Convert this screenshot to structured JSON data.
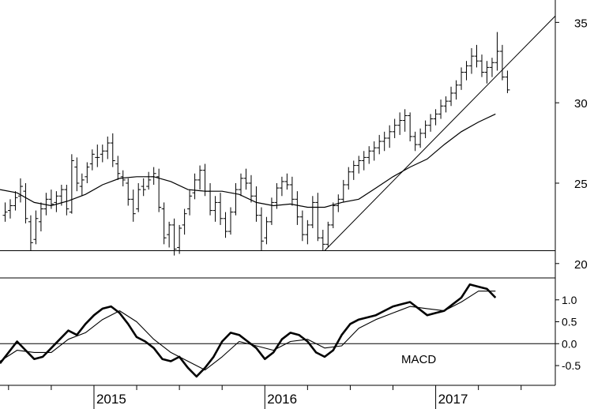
{
  "chart_data": [
    {
      "type": "ohlc",
      "y_ticks": [
        20,
        25,
        30,
        35
      ],
      "y_tick_labels": [
        "20",
        "25",
        "30",
        "35"
      ],
      "ylim": [
        19.4,
        36.0
      ],
      "xlim": [
        2014.45,
        2017.7
      ],
      "support_line": {
        "y": 20.8,
        "x": [
          2014.45,
          2017.7
        ]
      },
      "trend_line": {
        "points": [
          [
            2016.35,
            20.8
          ],
          [
            2017.7,
            35.4
          ]
        ]
      },
      "bars": [
        [
          2014.48,
          23.0,
          23.8,
          22.6,
          23.2
        ],
        [
          2014.51,
          23.3,
          24.0,
          22.8,
          23.6
        ],
        [
          2014.54,
          23.6,
          24.5,
          23.3,
          24.1
        ],
        [
          2014.57,
          24.2,
          25.3,
          23.8,
          24.8
        ],
        [
          2014.6,
          24.5,
          25.0,
          22.5,
          22.8
        ],
        [
          2014.63,
          22.6,
          23.0,
          20.8,
          21.3
        ],
        [
          2014.66,
          21.5,
          23.3,
          21.2,
          22.8
        ],
        [
          2014.69,
          22.6,
          23.8,
          22.0,
          23.4
        ],
        [
          2014.72,
          23.4,
          24.4,
          23.0,
          24.0
        ],
        [
          2014.75,
          24.0,
          24.6,
          23.4,
          23.7
        ],
        [
          2014.78,
          23.8,
          24.5,
          23.2,
          24.2
        ],
        [
          2014.81,
          24.2,
          24.9,
          23.6,
          24.6
        ],
        [
          2014.84,
          24.6,
          24.9,
          23.0,
          23.4
        ],
        [
          2014.87,
          23.2,
          26.8,
          23.1,
          26.4
        ],
        [
          2014.9,
          26.0,
          26.6,
          24.5,
          25.0
        ],
        [
          2014.93,
          24.8,
          25.6,
          24.2,
          25.2
        ],
        [
          2014.96,
          25.4,
          26.3,
          25.0,
          26.0
        ],
        [
          2014.99,
          26.2,
          27.1,
          25.8,
          26.8
        ],
        [
          2015.02,
          26.6,
          27.4,
          26.0,
          26.6
        ],
        [
          2015.05,
          26.8,
          27.4,
          26.3,
          27.0
        ],
        [
          2015.08,
          27.0,
          27.9,
          26.5,
          27.5
        ],
        [
          2015.11,
          27.5,
          28.1,
          26.0,
          26.4
        ],
        [
          2015.14,
          26.2,
          26.7,
          25.2,
          25.6
        ],
        [
          2015.17,
          25.4,
          25.8,
          24.8,
          25.2
        ],
        [
          2015.2,
          25.0,
          25.3,
          23.6,
          24.0
        ],
        [
          2015.23,
          24.0,
          24.6,
          22.6,
          23.1
        ],
        [
          2015.26,
          23.4,
          25.0,
          23.2,
          24.6
        ],
        [
          2015.29,
          24.8,
          25.3,
          24.2,
          24.6
        ],
        [
          2015.32,
          24.8,
          25.7,
          24.6,
          25.2
        ],
        [
          2015.35,
          25.4,
          26.0,
          24.9,
          25.6
        ],
        [
          2015.38,
          25.4,
          25.9,
          23.2,
          23.5
        ],
        [
          2015.41,
          23.4,
          23.8,
          21.2,
          21.6
        ],
        [
          2015.44,
          21.8,
          22.6,
          21.0,
          22.4
        ],
        [
          2015.47,
          22.4,
          22.8,
          20.5,
          20.9
        ],
        [
          2015.5,
          21.0,
          22.4,
          20.6,
          22.2
        ],
        [
          2015.53,
          22.4,
          23.4,
          21.8,
          23.1
        ],
        [
          2015.56,
          23.4,
          24.6,
          23.0,
          24.2
        ],
        [
          2015.59,
          24.4,
          25.6,
          24.0,
          25.2
        ],
        [
          2015.62,
          25.2,
          26.1,
          24.6,
          25.8
        ],
        [
          2015.65,
          25.8,
          26.2,
          24.2,
          24.5
        ],
        [
          2015.68,
          24.5,
          25.0,
          23.0,
          23.3
        ],
        [
          2015.71,
          23.3,
          24.2,
          22.6,
          23.8
        ],
        [
          2015.74,
          23.8,
          24.4,
          22.4,
          22.8
        ],
        [
          2015.77,
          22.8,
          23.2,
          21.6,
          22.0
        ],
        [
          2015.8,
          22.0,
          23.5,
          21.8,
          23.2
        ],
        [
          2015.83,
          23.2,
          25.0,
          23.0,
          24.6
        ],
        [
          2015.86,
          24.6,
          25.6,
          24.2,
          25.3
        ],
        [
          2015.89,
          25.3,
          25.9,
          24.6,
          25.0
        ],
        [
          2015.92,
          25.0,
          25.5,
          23.8,
          24.2
        ],
        [
          2015.95,
          24.2,
          24.8,
          22.6,
          23.0
        ],
        [
          2015.98,
          23.0,
          23.5,
          20.8,
          21.4
        ],
        [
          2016.01,
          21.6,
          22.9,
          21.2,
          22.6
        ],
        [
          2016.04,
          22.6,
          24.1,
          22.4,
          23.8
        ],
        [
          2016.07,
          23.8,
          25.0,
          23.4,
          24.7
        ],
        [
          2016.1,
          24.7,
          25.4,
          24.2,
          25.1
        ],
        [
          2016.13,
          25.1,
          25.6,
          24.6,
          24.9
        ],
        [
          2016.16,
          24.9,
          25.4,
          23.6,
          24.0
        ],
        [
          2016.19,
          24.0,
          24.5,
          22.4,
          22.9
        ],
        [
          2016.22,
          22.9,
          23.3,
          21.4,
          21.8
        ],
        [
          2016.25,
          21.8,
          22.7,
          21.2,
          22.4
        ],
        [
          2016.28,
          22.4,
          24.2,
          22.2,
          23.8
        ],
        [
          2016.31,
          23.8,
          24.4,
          21.4,
          21.6
        ],
        [
          2016.34,
          21.6,
          22.1,
          20.8,
          21.2
        ],
        [
          2016.37,
          21.2,
          22.6,
          21.0,
          22.4
        ],
        [
          2016.4,
          22.4,
          23.8,
          22.2,
          23.6
        ],
        [
          2016.43,
          23.6,
          24.3,
          23.2,
          24.0
        ],
        [
          2016.46,
          24.0,
          25.2,
          23.8,
          24.9
        ],
        [
          2016.49,
          24.9,
          26.0,
          24.6,
          25.7
        ],
        [
          2016.52,
          25.7,
          26.4,
          25.2,
          26.1
        ],
        [
          2016.55,
          26.1,
          26.7,
          25.6,
          26.4
        ],
        [
          2016.58,
          26.4,
          27.0,
          25.8,
          26.6
        ],
        [
          2016.61,
          26.6,
          27.3,
          26.2,
          27.0
        ],
        [
          2016.64,
          27.0,
          27.6,
          26.4,
          27.2
        ],
        [
          2016.67,
          27.2,
          28.0,
          26.8,
          27.6
        ],
        [
          2016.7,
          27.6,
          28.2,
          27.0,
          27.8
        ],
        [
          2016.73,
          27.8,
          28.6,
          27.2,
          28.2
        ],
        [
          2016.76,
          28.2,
          29.0,
          27.8,
          28.6
        ],
        [
          2016.79,
          28.6,
          29.4,
          28.0,
          28.9
        ],
        [
          2016.82,
          28.9,
          29.6,
          28.2,
          29.2
        ],
        [
          2016.85,
          29.2,
          29.4,
          27.6,
          27.9
        ],
        [
          2016.88,
          27.9,
          28.2,
          27.0,
          27.4
        ],
        [
          2016.91,
          27.4,
          28.4,
          27.2,
          28.1
        ],
        [
          2016.94,
          28.1,
          28.9,
          27.8,
          28.6
        ],
        [
          2016.97,
          28.6,
          29.3,
          28.2,
          29.0
        ],
        [
          2017.0,
          29.0,
          29.6,
          28.6,
          29.3
        ],
        [
          2017.03,
          29.3,
          30.2,
          29.0,
          29.8
        ],
        [
          2017.06,
          29.8,
          30.4,
          29.4,
          30.1
        ],
        [
          2017.09,
          30.1,
          31.0,
          29.8,
          30.6
        ],
        [
          2017.12,
          30.6,
          31.4,
          30.2,
          31.1
        ],
        [
          2017.15,
          31.1,
          32.2,
          30.8,
          31.9
        ],
        [
          2017.18,
          31.9,
          32.6,
          31.4,
          32.3
        ],
        [
          2017.21,
          32.3,
          33.4,
          31.8,
          32.9
        ],
        [
          2017.24,
          32.9,
          33.6,
          32.2,
          32.6
        ],
        [
          2017.27,
          32.6,
          33.0,
          31.6,
          31.9
        ],
        [
          2017.3,
          31.9,
          32.6,
          31.2,
          32.2
        ],
        [
          2017.33,
          32.2,
          32.8,
          31.6,
          32.5
        ],
        [
          2017.36,
          32.5,
          34.4,
          32.0,
          33.2
        ],
        [
          2017.39,
          33.2,
          33.6,
          31.4,
          31.6
        ],
        [
          2017.42,
          31.6,
          32.0,
          30.6,
          30.8
        ]
      ],
      "moving_average": [
        [
          2014.45,
          24.6
        ],
        [
          2014.55,
          24.4
        ],
        [
          2014.65,
          23.8
        ],
        [
          2014.75,
          23.6
        ],
        [
          2014.85,
          23.9
        ],
        [
          2014.95,
          24.3
        ],
        [
          2015.05,
          24.9
        ],
        [
          2015.15,
          25.3
        ],
        [
          2015.25,
          25.4
        ],
        [
          2015.35,
          25.4
        ],
        [
          2015.45,
          25.1
        ],
        [
          2015.55,
          24.6
        ],
        [
          2015.65,
          24.5
        ],
        [
          2015.75,
          24.5
        ],
        [
          2015.85,
          24.3
        ],
        [
          2015.95,
          23.8
        ],
        [
          2016.05,
          23.6
        ],
        [
          2016.15,
          23.7
        ],
        [
          2016.25,
          23.5
        ],
        [
          2016.35,
          23.5
        ],
        [
          2016.45,
          23.8
        ],
        [
          2016.55,
          24.0
        ],
        [
          2016.65,
          24.7
        ],
        [
          2016.75,
          25.4
        ],
        [
          2016.85,
          26.0
        ],
        [
          2016.95,
          26.5
        ],
        [
          2017.05,
          27.4
        ],
        [
          2017.15,
          28.2
        ],
        [
          2017.25,
          28.8
        ],
        [
          2017.35,
          29.3
        ]
      ]
    },
    {
      "type": "line",
      "annotation": "MACD",
      "y_ticks": [
        -0.5,
        0.0,
        0.5,
        1.0
      ],
      "y_tick_labels": [
        "-0.5",
        "0.0",
        "0.5",
        "1.0"
      ],
      "ylim": [
        -0.95,
        1.5
      ],
      "x_tick_labels": [
        "2015",
        "2016",
        "2017"
      ],
      "x_ticks": [
        2015.0,
        2016.0,
        2017.0
      ],
      "x_minor_ticks": [
        2014.5,
        2014.75,
        2015.25,
        2015.5,
        2015.75,
        2016.25,
        2016.5,
        2016.75,
        2017.25,
        2017.5
      ],
      "zero_line": 0.0,
      "series": [
        {
          "values": [
            [
              2014.45,
              -0.45
            ],
            [
              2014.5,
              -0.2
            ],
            [
              2014.55,
              0.05
            ],
            [
              2014.6,
              -0.15
            ],
            [
              2014.65,
              -0.35
            ],
            [
              2014.7,
              -0.3
            ],
            [
              2014.75,
              -0.1
            ],
            [
              2014.8,
              0.1
            ],
            [
              2014.85,
              0.3
            ],
            [
              2014.9,
              0.2
            ],
            [
              2014.95,
              0.45
            ],
            [
              2015.0,
              0.65
            ],
            [
              2015.05,
              0.8
            ],
            [
              2015.1,
              0.85
            ],
            [
              2015.15,
              0.7
            ],
            [
              2015.2,
              0.45
            ],
            [
              2015.25,
              0.15
            ],
            [
              2015.3,
              0.05
            ],
            [
              2015.35,
              -0.1
            ],
            [
              2015.4,
              -0.35
            ],
            [
              2015.45,
              -0.4
            ],
            [
              2015.5,
              -0.3
            ],
            [
              2015.55,
              -0.55
            ],
            [
              2015.6,
              -0.75
            ],
            [
              2015.65,
              -0.55
            ],
            [
              2015.7,
              -0.3
            ],
            [
              2015.75,
              0.05
            ],
            [
              2015.8,
              0.25
            ],
            [
              2015.85,
              0.2
            ],
            [
              2015.9,
              0.05
            ],
            [
              2015.95,
              -0.1
            ],
            [
              2016.0,
              -0.35
            ],
            [
              2016.05,
              -0.2
            ],
            [
              2016.1,
              0.1
            ],
            [
              2016.15,
              0.25
            ],
            [
              2016.2,
              0.2
            ],
            [
              2016.25,
              0.05
            ],
            [
              2016.3,
              -0.2
            ],
            [
              2016.35,
              -0.3
            ],
            [
              2016.4,
              -0.15
            ],
            [
              2016.45,
              0.2
            ],
            [
              2016.5,
              0.45
            ],
            [
              2016.55,
              0.55
            ],
            [
              2016.6,
              0.6
            ],
            [
              2016.65,
              0.65
            ],
            [
              2016.7,
              0.75
            ],
            [
              2016.75,
              0.85
            ],
            [
              2016.8,
              0.9
            ],
            [
              2016.85,
              0.95
            ],
            [
              2016.9,
              0.8
            ],
            [
              2016.95,
              0.65
            ],
            [
              2017.0,
              0.7
            ],
            [
              2017.05,
              0.75
            ],
            [
              2017.1,
              0.9
            ],
            [
              2017.15,
              1.05
            ],
            [
              2017.2,
              1.35
            ],
            [
              2017.25,
              1.3
            ],
            [
              2017.3,
              1.25
            ],
            [
              2017.35,
              1.05
            ]
          ]
        },
        {
          "values": [
            [
              2014.45,
              -0.4
            ],
            [
              2014.55,
              -0.15
            ],
            [
              2014.65,
              -0.2
            ],
            [
              2014.75,
              -0.2
            ],
            [
              2014.85,
              0.1
            ],
            [
              2014.95,
              0.25
            ],
            [
              2015.05,
              0.55
            ],
            [
              2015.15,
              0.75
            ],
            [
              2015.25,
              0.5
            ],
            [
              2015.35,
              0.1
            ],
            [
              2015.45,
              -0.2
            ],
            [
              2015.55,
              -0.4
            ],
            [
              2015.65,
              -0.6
            ],
            [
              2015.75,
              -0.3
            ],
            [
              2015.85,
              0.05
            ],
            [
              2015.95,
              -0.05
            ],
            [
              2016.05,
              -0.15
            ],
            [
              2016.15,
              0.05
            ],
            [
              2016.25,
              0.1
            ],
            [
              2016.35,
              -0.1
            ],
            [
              2016.45,
              -0.05
            ],
            [
              2016.55,
              0.35
            ],
            [
              2016.65,
              0.55
            ],
            [
              2016.75,
              0.7
            ],
            [
              2016.85,
              0.85
            ],
            [
              2016.95,
              0.8
            ],
            [
              2017.05,
              0.75
            ],
            [
              2017.15,
              0.95
            ],
            [
              2017.25,
              1.2
            ],
            [
              2017.35,
              1.2
            ]
          ]
        }
      ]
    }
  ]
}
